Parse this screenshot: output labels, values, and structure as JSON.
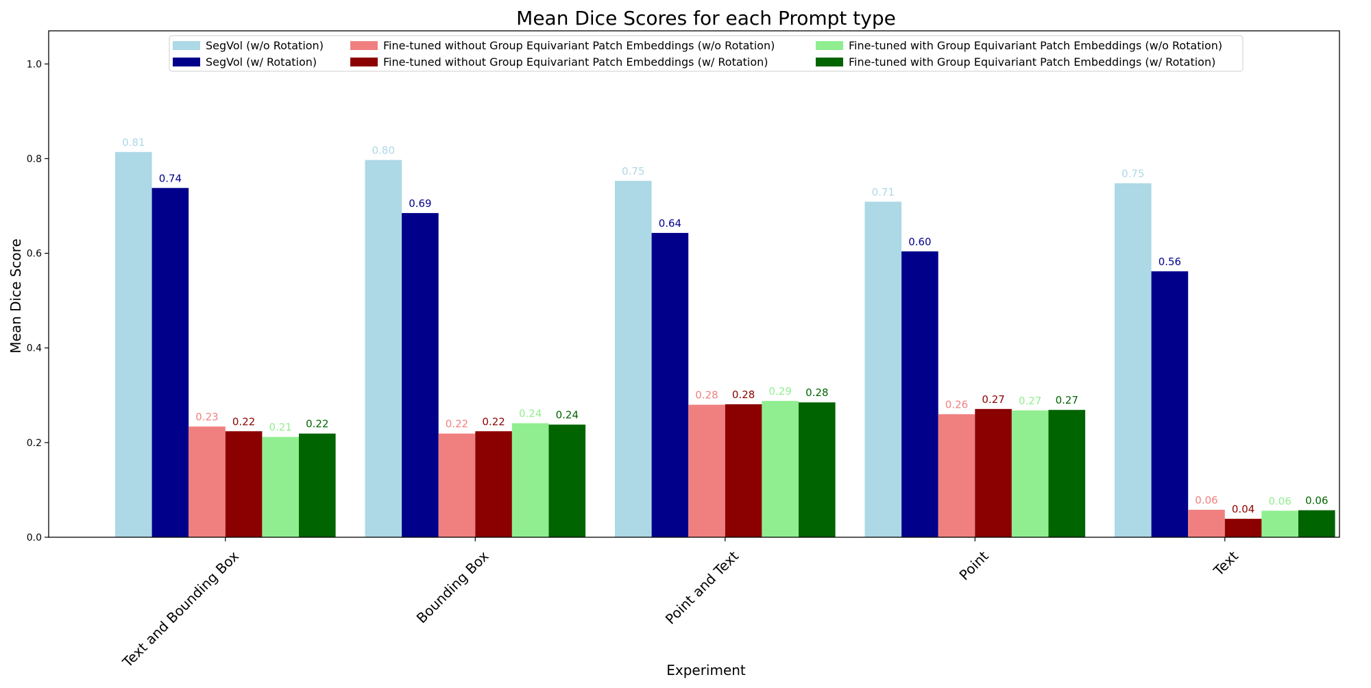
{
  "chart_data": {
    "type": "bar",
    "title": "Mean Dice Scores for each Prompt type",
    "xlabel": "Experiment",
    "ylabel": "Mean Dice Score",
    "ylim": [
      0,
      1.07
    ],
    "yticks": [
      0.0,
      0.2,
      0.4,
      0.6,
      0.8,
      1.0
    ],
    "ytick_labels": [
      "0.0",
      "0.2",
      "0.4",
      "0.6",
      "0.8",
      "1.0"
    ],
    "grid": false,
    "legend_position": "top-center",
    "legend_columns": 3,
    "categories": [
      "Text and Bounding Box",
      "Bounding Box",
      "Point and Text",
      "Point",
      "Text"
    ],
    "series": [
      {
        "name": "SegVol (w/o Rotation)",
        "color": "#add8e6",
        "values": [
          0.814,
          0.797,
          0.753,
          0.709,
          0.748
        ],
        "labels": [
          "0.81",
          "0.80",
          "0.75",
          "0.71",
          "0.75"
        ]
      },
      {
        "name": "SegVol (w/ Rotation)",
        "color": "#00008b",
        "values": [
          0.738,
          0.685,
          0.643,
          0.604,
          0.562
        ],
        "labels": [
          "0.74",
          "0.69",
          "0.64",
          "0.60",
          "0.56"
        ]
      },
      {
        "name": "Fine-tuned without Group Equivariant Patch Embeddings (w/o Rotation)",
        "color": "#f08080",
        "values": [
          0.234,
          0.219,
          0.28,
          0.26,
          0.058
        ],
        "labels": [
          "0.23",
          "0.22",
          "0.28",
          "0.26",
          "0.06"
        ]
      },
      {
        "name": "Fine-tuned without Group Equivariant Patch Embeddings (w/ Rotation)",
        "color": "#8b0000",
        "values": [
          0.224,
          0.224,
          0.281,
          0.271,
          0.039
        ],
        "labels": [
          "0.22",
          "0.22",
          "0.28",
          "0.27",
          "0.04"
        ]
      },
      {
        "name": "Fine-tuned with Group Equivariant Patch Embeddings (w/o Rotation)",
        "color": "#90ee90",
        "values": [
          0.212,
          0.241,
          0.288,
          0.268,
          0.056
        ],
        "labels": [
          "0.21",
          "0.24",
          "0.29",
          "0.27",
          "0.06"
        ]
      },
      {
        "name": "Fine-tuned with Group Equivariant Patch Embeddings (w/ Rotation)",
        "color": "#006400",
        "values": [
          0.219,
          0.238,
          0.285,
          0.269,
          0.057
        ],
        "labels": [
          "0.22",
          "0.24",
          "0.28",
          "0.27",
          "0.06"
        ]
      }
    ]
  }
}
